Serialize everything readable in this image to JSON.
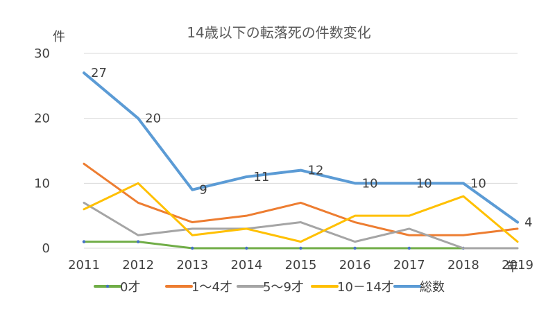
{
  "chart_data": {
    "type": "line",
    "title": "14歳以下の転落死の件数変化",
    "ylabel": "件",
    "xlabel": "年",
    "categories": [
      "2011",
      "2012",
      "2013",
      "2014",
      "2015",
      "2016",
      "2017",
      "2018",
      "2019"
    ],
    "ylim": [
      0,
      30
    ],
    "yticks": [
      "0",
      "10",
      "20",
      "30"
    ],
    "grid": true,
    "legend_position": "bottom",
    "series": [
      {
        "name": "0才",
        "color": "#70ad47",
        "values": [
          1,
          1,
          0,
          0,
          0,
          0,
          0,
          0,
          null
        ]
      },
      {
        "name": "1～4才",
        "color": "#ed7d31",
        "values": [
          13,
          7,
          4,
          5,
          7,
          4,
          2,
          2,
          3
        ]
      },
      {
        "name": "5～9才",
        "color": "#a5a5a5",
        "values": [
          7,
          2,
          3,
          3,
          4,
          1,
          3,
          0,
          0
        ]
      },
      {
        "name": "10－14才",
        "color": "#ffc000",
        "values": [
          6,
          10,
          2,
          3,
          1,
          5,
          5,
          8,
          1
        ]
      },
      {
        "name": "総数",
        "color": "#5b9bd5",
        "values": [
          27,
          20,
          9,
          11,
          12,
          10,
          10,
          10,
          4
        ],
        "data_labels": [
          "27",
          "20",
          "9",
          "11",
          "12",
          "10",
          "10",
          "10",
          "4"
        ]
      }
    ]
  }
}
